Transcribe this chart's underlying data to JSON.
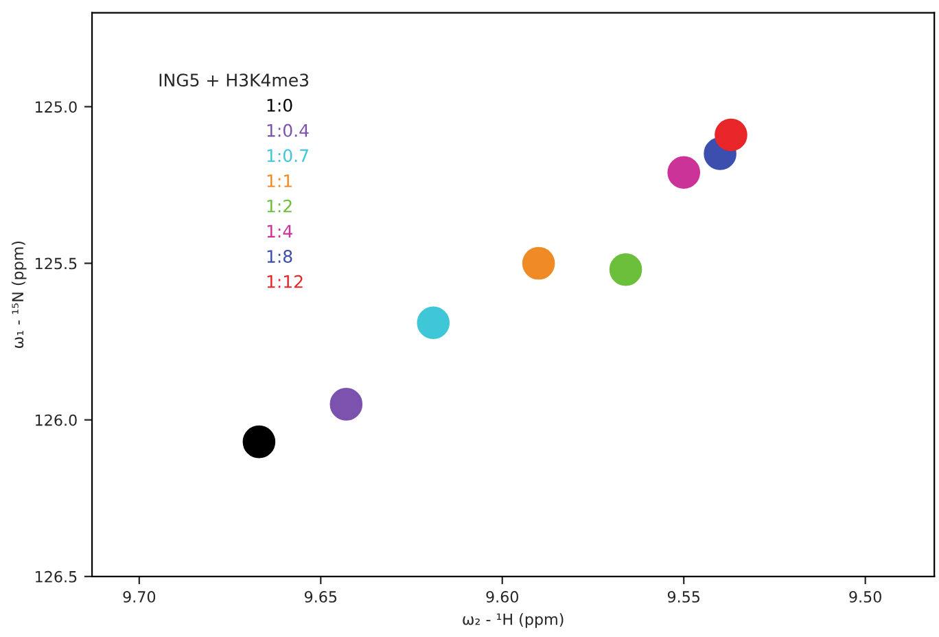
{
  "chart_data": {
    "type": "scatter",
    "xlabel": "ω₂ - ¹H (ppm)",
    "ylabel": "ω₁ - ¹⁵N (ppm)",
    "legend_title": "ING5 + H3K4me3",
    "series": [
      {
        "name": "1:0",
        "color": "#000000",
        "x": [
          9.667
        ],
        "values": [
          126.07
        ]
      },
      {
        "name": "1:0.4",
        "color": "#7b52ae",
        "x": [
          9.643
        ],
        "values": [
          125.95
        ]
      },
      {
        "name": "1:0.7",
        "color": "#3fc7d8",
        "x": [
          9.619
        ],
        "values": [
          125.69
        ]
      },
      {
        "name": "1:1",
        "color": "#f08a24",
        "x": [
          9.59
        ],
        "values": [
          125.5
        ]
      },
      {
        "name": "1:2",
        "color": "#6cbf3a",
        "x": [
          9.566
        ],
        "values": [
          125.52
        ]
      },
      {
        "name": "1:4",
        "color": "#cc3399",
        "x": [
          9.55
        ],
        "values": [
          125.21
        ]
      },
      {
        "name": "1:8",
        "color": "#3d4fae",
        "x": [
          9.54
        ],
        "values": [
          125.15
        ]
      },
      {
        "name": "1:12",
        "color": "#e8262a",
        "x": [
          9.537
        ],
        "values": [
          125.09
        ]
      }
    ],
    "xlim": [
      9.713,
      9.481
    ],
    "ylim": [
      126.5,
      124.7
    ],
    "xticks": [
      {
        "value": 9.7,
        "label": "9.70"
      },
      {
        "value": 9.65,
        "label": "9.65"
      },
      {
        "value": 9.6,
        "label": "9.60"
      },
      {
        "value": 9.55,
        "label": "9.55"
      },
      {
        "value": 9.5,
        "label": "9.50"
      }
    ],
    "yticks": [
      {
        "value": 125,
        "label": "125.0"
      },
      {
        "value": 125.5,
        "label": "125.5"
      },
      {
        "value": 126,
        "label": "126.0"
      },
      {
        "value": 126.5,
        "label": "126.5"
      }
    ],
    "grid": false,
    "legend": "top left",
    "marker": "circle"
  }
}
